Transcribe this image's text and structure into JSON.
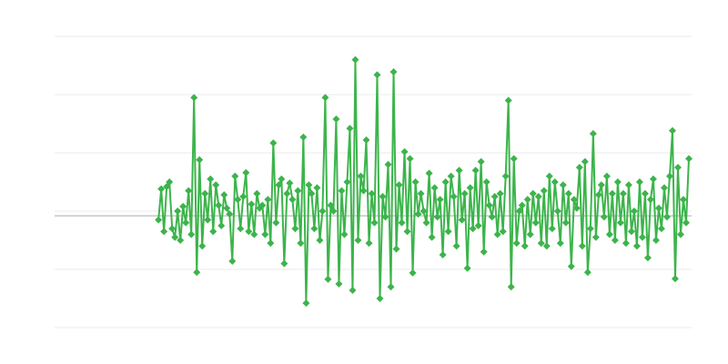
{
  "chart_data": {
    "type": "line",
    "title": "",
    "xlabel": "",
    "ylabel": "",
    "grid": true,
    "legend": "none",
    "xlim": [
      -38,
      195
    ],
    "ylim": [
      -2,
      3
    ],
    "gridlines": [
      -2,
      -1,
      0,
      1,
      2,
      3
    ],
    "reference_line": -0.08,
    "series": [
      {
        "color": "#3cb44b",
        "marker": "diamond",
        "values": [
          -0.15,
          0.38,
          -0.35,
          0.42,
          0.5,
          -0.3,
          -0.45,
          0.0,
          -0.5,
          0.08,
          -0.2,
          0.35,
          -0.4,
          1.95,
          -1.05,
          0.88,
          -0.6,
          0.3,
          -0.15,
          0.55,
          -0.35,
          0.45,
          0.1,
          -0.25,
          0.28,
          0.05,
          -0.05,
          -0.86,
          0.6,
          0.2,
          -0.3,
          0.25,
          0.66,
          -0.35,
          0.12,
          -0.4,
          0.3,
          0.05,
          0.1,
          -0.4,
          0.2,
          -0.55,
          1.17,
          -0.2,
          0.45,
          0.55,
          -0.9,
          0.3,
          0.48,
          0.2,
          -0.3,
          0.35,
          -0.55,
          1.27,
          -1.58,
          0.45,
          0.3,
          -0.3,
          0.4,
          -0.5,
          0.0,
          1.95,
          -1.17,
          0.1,
          0.0,
          1.58,
          -1.25,
          0.35,
          -0.4,
          0.5,
          1.42,
          -1.36,
          2.6,
          -0.5,
          0.6,
          0.35,
          1.22,
          -0.55,
          0.3,
          -0.2,
          2.34,
          -1.5,
          0.25,
          -0.1,
          0.8,
          -1.3,
          2.39,
          -0.65,
          0.45,
          -0.2,
          1.02,
          -0.35,
          0.9,
          -1.06,
          0.5,
          -0.05,
          0.3,
          0.0,
          -0.2,
          0.65,
          -0.45,
          0.4,
          -0.1,
          0.2,
          -0.75,
          0.5,
          -0.35,
          0.6,
          0.25,
          -0.6,
          0.7,
          -0.15,
          0.3,
          -0.98,
          0.4,
          -0.3,
          0.7,
          -0.25,
          0.85,
          -0.7,
          0.5,
          0.1,
          -0.1,
          0.25,
          -0.4,
          0.3,
          -0.35,
          0.6,
          1.9,
          -1.3,
          0.9,
          -0.55,
          0.0,
          0.1,
          -0.6,
          0.2,
          -0.4,
          0.3,
          -0.2,
          0.25,
          -0.55,
          0.35,
          -0.6,
          0.6,
          -0.3,
          0.5,
          0.0,
          -0.55,
          0.45,
          -0.2,
          0.3,
          -0.95,
          0.2,
          0.05,
          0.75,
          -0.6,
          0.85,
          -1.05,
          -0.3,
          1.33,
          -0.45,
          0.28,
          0.45,
          -0.1,
          0.6,
          -0.4,
          0.3,
          -0.5,
          0.5,
          -0.2,
          0.3,
          -0.55,
          0.45,
          -0.35,
          0.0,
          -0.6,
          0.5,
          -0.45,
          0.3,
          -0.8,
          0.2,
          0.55,
          -0.5,
          0.05,
          -0.3,
          0.4,
          -0.1,
          0.6,
          1.38,
          -1.16,
          0.75,
          -0.4,
          0.2,
          -0.2,
          0.9
        ]
      }
    ]
  }
}
